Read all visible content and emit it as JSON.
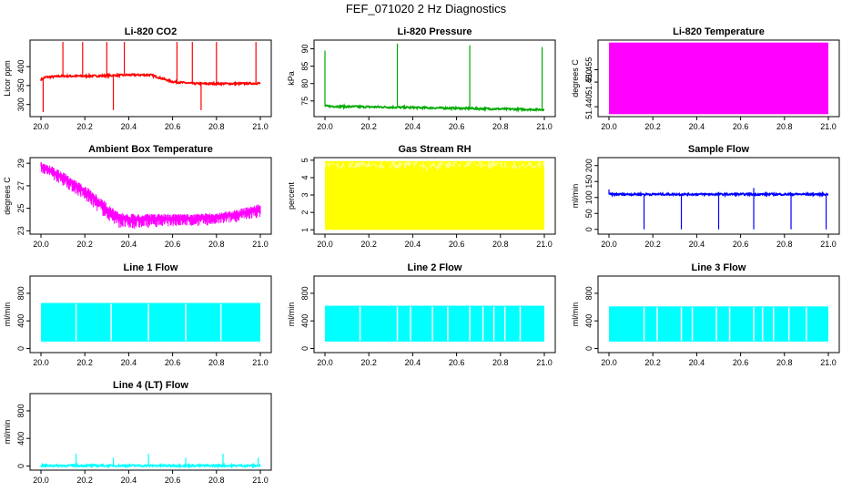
{
  "figure": {
    "title": "FEF_071020  2 Hz Diagnostics"
  },
  "chart_data": [
    {
      "type": "line",
      "title": "Li-820 CO2",
      "xlabel": "",
      "ylabel": "Licor ppm",
      "color": "#ff0000",
      "xlim": [
        20.0,
        21.0
      ],
      "ylim": [
        268,
        470
      ],
      "x_ticks": [
        "20.0",
        "20.2",
        "20.4",
        "20.6",
        "20.8",
        "21.0"
      ],
      "y_ticks": [
        "300",
        "350",
        "400"
      ],
      "style": "spiky",
      "series": [
        {
          "x": [
            20.0,
            20.02,
            20.1,
            20.2,
            20.3,
            20.4,
            20.5,
            20.6,
            20.7,
            20.8,
            20.9,
            21.0
          ],
          "y": [
            365,
            372,
            375,
            375,
            376,
            378,
            378,
            360,
            355,
            355,
            355,
            356
          ]
        }
      ],
      "spikes": [
        [
          20.01,
          280
        ],
        [
          20.1,
          465
        ],
        [
          20.19,
          465
        ],
        [
          20.3,
          465
        ],
        [
          20.33,
          285
        ],
        [
          20.38,
          465
        ],
        [
          20.62,
          465
        ],
        [
          20.69,
          465
        ],
        [
          20.73,
          285
        ],
        [
          20.8,
          465
        ],
        [
          20.98,
          465
        ]
      ]
    },
    {
      "type": "line",
      "title": "Li-820 Pressure",
      "xlabel": "",
      "ylabel": "kPa",
      "color": "#00aa00",
      "xlim": [
        20.0,
        21.0
      ],
      "ylim": [
        70.5,
        92.5
      ],
      "x_ticks": [
        "20.0",
        "20.2",
        "20.4",
        "20.6",
        "20.8",
        "21.0"
      ],
      "y_ticks": [
        "75",
        "80",
        "85",
        "90"
      ],
      "style": "spiky",
      "series": [
        {
          "x": [
            20.0,
            20.2,
            20.4,
            20.6,
            20.8,
            21.0
          ],
          "y": [
            73.5,
            73.3,
            73.1,
            72.9,
            72.7,
            72.5
          ]
        }
      ],
      "spikes": [
        [
          20.0,
          89.5
        ],
        [
          20.33,
          91.5
        ],
        [
          20.66,
          91
        ],
        [
          20.99,
          90.5
        ]
      ]
    },
    {
      "type": "area",
      "title": "Li-820 Temperature",
      "xlabel": "",
      "ylabel": "degrees C",
      "color": "#ff00ff",
      "xlim": [
        20.0,
        21.0
      ],
      "ylim": [
        51.436,
        51.467
      ],
      "x_ticks": [
        "20.0",
        "20.2",
        "20.4",
        "20.6",
        "20.8",
        "21.0"
      ],
      "y_ticks": [
        "51.440",
        "51.450",
        "51.455"
      ],
      "style": "band",
      "series": [
        {
          "x": [
            20.0,
            21.0
          ],
          "lower": [
            51.437,
            51.437
          ],
          "upper": [
            51.466,
            51.466
          ]
        }
      ]
    },
    {
      "type": "line",
      "title": "Ambient Box Temperature",
      "xlabel": "",
      "ylabel": "degrees C",
      "color": "#ff00ff",
      "xlim": [
        20.0,
        21.0
      ],
      "ylim": [
        22.7,
        29.5
      ],
      "x_ticks": [
        "20.0",
        "20.2",
        "20.4",
        "20.6",
        "20.8",
        "21.0"
      ],
      "y_ticks": [
        "23",
        "25",
        "27",
        "29"
      ],
      "style": "noisy",
      "series": [
        {
          "x": [
            20.0,
            20.05,
            20.1,
            20.2,
            20.3,
            20.35,
            20.4,
            20.5,
            20.6,
            20.7,
            20.8,
            20.9,
            21.0
          ],
          "upper": [
            29.1,
            28.7,
            28.2,
            27.0,
            25.5,
            24.7,
            24.5,
            24.5,
            24.5,
            24.5,
            24.6,
            24.9,
            25.4
          ],
          "lower": [
            28.2,
            27.6,
            27.0,
            25.7,
            24.0,
            23.3,
            23.1,
            23.3,
            23.4,
            23.4,
            23.5,
            23.8,
            24.2
          ]
        }
      ]
    },
    {
      "type": "area",
      "title": "Gas Stream RH",
      "xlabel": "",
      "ylabel": "percent",
      "color": "#ffff00",
      "xlim": [
        20.0,
        21.0
      ],
      "ylim": [
        0.75,
        5.15
      ],
      "x_ticks": [
        "20.0",
        "20.2",
        "20.4",
        "20.6",
        "20.8",
        "21.0"
      ],
      "y_ticks": [
        "1",
        "2",
        "3",
        "4",
        "5"
      ],
      "style": "band",
      "series": [
        {
          "x": [
            20.0,
            21.0
          ],
          "lower": [
            1.0,
            1.0
          ],
          "upper": [
            4.95,
            4.95
          ]
        }
      ]
    },
    {
      "type": "line",
      "title": "Sample Flow",
      "xlabel": "",
      "ylabel": "ml/min",
      "color": "#0000ff",
      "xlim": [
        20.0,
        21.0
      ],
      "ylim": [
        -15,
        225
      ],
      "x_ticks": [
        "20.0",
        "20.2",
        "20.4",
        "20.6",
        "20.8",
        "21.0"
      ],
      "y_ticks": [
        "0",
        "50",
        "100",
        "150",
        "200"
      ],
      "style": "spiky",
      "series": [
        {
          "x": [
            20.0,
            20.2,
            20.4,
            20.6,
            20.8,
            21.0
          ],
          "y": [
            110,
            110,
            110,
            110,
            110,
            110
          ]
        }
      ],
      "spikes": [
        [
          20.0,
          125
        ],
        [
          20.16,
          0
        ],
        [
          20.33,
          0
        ],
        [
          20.5,
          0
        ],
        [
          20.66,
          0
        ],
        [
          20.66,
          130
        ],
        [
          20.83,
          0
        ],
        [
          20.99,
          0
        ]
      ]
    },
    {
      "type": "area",
      "title": "Line 1 Flow",
      "xlabel": "",
      "ylabel": "ml/min",
      "color": "#00ffff",
      "xlim": [
        20.0,
        21.0
      ],
      "ylim": [
        -60,
        1050
      ],
      "x_ticks": [
        "20.0",
        "20.2",
        "20.4",
        "20.6",
        "20.8",
        "21.0"
      ],
      "y_ticks": [
        "0",
        "400",
        "800"
      ],
      "style": "band",
      "series": [
        {
          "x": [
            20.0,
            21.0
          ],
          "lower": [
            100,
            100
          ],
          "upper": [
            660,
            660
          ]
        }
      ],
      "gaps": [
        20.16,
        20.32,
        20.49,
        20.66,
        20.82
      ]
    },
    {
      "type": "area",
      "title": "Line 2 Flow",
      "xlabel": "",
      "ylabel": "ml/min",
      "color": "#00ffff",
      "xlim": [
        20.0,
        21.0
      ],
      "ylim": [
        -60,
        1050
      ],
      "x_ticks": [
        "20.0",
        "20.2",
        "20.4",
        "20.6",
        "20.8",
        "21.0"
      ],
      "y_ticks": [
        "0",
        "400",
        "800"
      ],
      "style": "band",
      "series": [
        {
          "x": [
            20.0,
            21.0
          ],
          "lower": [
            100,
            100
          ],
          "upper": [
            620,
            620
          ]
        }
      ],
      "gaps": [
        20.16,
        20.33,
        20.39,
        20.49,
        20.56,
        20.66,
        20.72,
        20.77,
        20.82,
        20.89
      ]
    },
    {
      "type": "area",
      "title": "Line 3 Flow",
      "xlabel": "",
      "ylabel": "ml/min",
      "color": "#00ffff",
      "xlim": [
        20.0,
        21.0
      ],
      "ylim": [
        -60,
        1050
      ],
      "x_ticks": [
        "20.0",
        "20.2",
        "20.4",
        "20.6",
        "20.8",
        "21.0"
      ],
      "y_ticks": [
        "0",
        "400",
        "800"
      ],
      "style": "band",
      "series": [
        {
          "x": [
            20.0,
            21.0
          ],
          "lower": [
            100,
            100
          ],
          "upper": [
            610,
            610
          ]
        }
      ],
      "gaps": [
        20.16,
        20.22,
        20.33,
        20.38,
        20.49,
        20.55,
        20.66,
        20.7,
        20.75,
        20.82,
        20.9
      ]
    },
    {
      "type": "line",
      "title": "Line 4 (LT) Flow",
      "xlabel": "",
      "ylabel": "ml/min",
      "color": "#00ffff",
      "xlim": [
        20.0,
        21.0
      ],
      "ylim": [
        -60,
        1050
      ],
      "x_ticks": [
        "20.0",
        "20.2",
        "20.4",
        "20.6",
        "20.8",
        "21.0"
      ],
      "y_ticks": [
        "0",
        "400",
        "800"
      ],
      "style": "spiky",
      "series": [
        {
          "x": [
            20.0,
            21.0
          ],
          "y": [
            5,
            5
          ]
        }
      ],
      "spikes": [
        [
          20.16,
          180
        ],
        [
          20.33,
          120
        ],
        [
          20.49,
          180
        ],
        [
          20.66,
          120
        ],
        [
          20.83,
          180
        ],
        [
          20.99,
          120
        ]
      ]
    }
  ]
}
